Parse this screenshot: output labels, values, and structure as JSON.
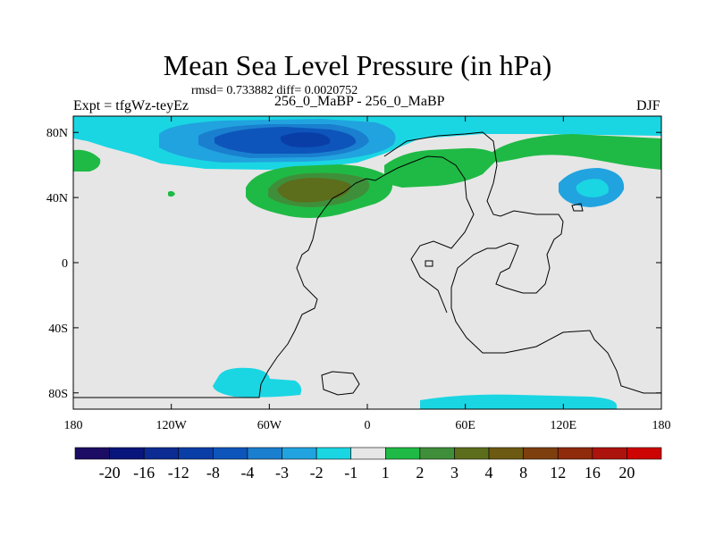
{
  "header": {
    "title": "Mean Sea Level Pressure (in hPa)",
    "stats": "rmsd= 0.733882 diff= 0.0020752",
    "expt": "Expt = tfgWz-teyEz",
    "comparison": "256_0_MaBP - 256_0_MaBP",
    "season": "DJF"
  },
  "chart_data": {
    "type": "contour-map",
    "title": "Mean Sea Level Pressure (in hPa)",
    "units": "hPa",
    "xlim": [
      -180,
      180
    ],
    "ylim": [
      -90,
      90
    ],
    "x_ticks": [
      {
        "value": -180,
        "label": "180"
      },
      {
        "value": -120,
        "label": "120W"
      },
      {
        "value": -60,
        "label": "60W"
      },
      {
        "value": 0,
        "label": "0"
      },
      {
        "value": 60,
        "label": "60E"
      },
      {
        "value": 120,
        "label": "120E"
      },
      {
        "value": 180,
        "label": "180"
      }
    ],
    "y_ticks": [
      {
        "value": 80,
        "label": "80N"
      },
      {
        "value": 40,
        "label": "40N"
      },
      {
        "value": 0,
        "label": "0"
      },
      {
        "value": -40,
        "label": "40S"
      },
      {
        "value": -80,
        "label": "80S"
      }
    ],
    "levels": [
      "-20",
      "-16",
      "-12",
      "-8",
      "-4",
      "-3",
      "-2",
      "-1",
      "1",
      "2",
      "3",
      "4",
      "8",
      "12",
      "16",
      "20"
    ],
    "colorbar_colors": [
      "#1c0c63",
      "#08157c",
      "#0d2c93",
      "#0a3ea7",
      "#0d55bb",
      "#1a7fcf",
      "#21a3df",
      "#1ad6e3",
      "#e6e6e6",
      "#1fba45",
      "#3f8f3a",
      "#5c6e1c",
      "#6d5a12",
      "#7e3f0e",
      "#8f2a0a",
      "#ad130d",
      "#cd0404"
    ],
    "regions": [
      {
        "label": "Arctic low band",
        "level_range": "-1 to -2",
        "color": "#1ad6e3"
      },
      {
        "label": "Arctic low core",
        "level_range": "-4 to -8",
        "color": "#0d55bb"
      },
      {
        "label": "North Atlantic high",
        "level_range": "2 to 4",
        "color": "#5c6e1c"
      },
      {
        "label": "Eurasian high band",
        "level_range": "1 to 2",
        "color": "#1fba45"
      },
      {
        "label": "Pacific low",
        "level_range": "-1 to -3",
        "color": "#21a3df"
      },
      {
        "label": "Antarctic low",
        "level_range": "-1 to -2",
        "color": "#1ad6e3"
      }
    ]
  }
}
